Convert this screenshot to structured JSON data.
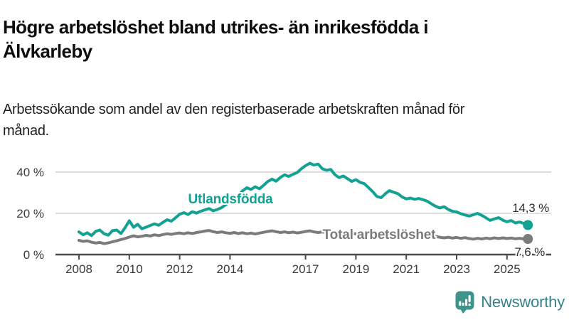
{
  "header": {
    "title": "Högre arbetslöshet bland utrikes- än inrikesfödda i Älvkarleby",
    "subtitle": "Arbetssökande som andel av den registerbaserade arbetskraften månad för månad."
  },
  "chart_data": {
    "type": "line",
    "title": "Högre arbetslöshet bland utrikes- än inrikesfödda i Älvkarleby",
    "subtitle": "Arbetssökande som andel av den registerbaserade arbetskraften månad för månad.",
    "unit": "%",
    "grid": "horizontal-only",
    "legend_position": "inline-labels",
    "x_range": [
      2008,
      2025.83
    ],
    "y_range": [
      0,
      48
    ],
    "x_ticks": [
      2008,
      2010,
      2012,
      2014,
      2017,
      2019,
      2021,
      2023,
      2025
    ],
    "y_ticks": [
      {
        "value": 0,
        "label": "0 %"
      },
      {
        "value": 20,
        "label": "20 %"
      },
      {
        "value": 40,
        "label": "40 %"
      }
    ],
    "series": [
      {
        "name": "Utlandsfödda",
        "color": "#12a192",
        "end_label": "14,3 %",
        "last_value": 14.3,
        "points": [
          [
            2008,
            11
          ],
          [
            2008.17,
            9.6
          ],
          [
            2008.33,
            10.6
          ],
          [
            2008.5,
            9.2
          ],
          [
            2008.67,
            11.3
          ],
          [
            2008.83,
            11.9
          ],
          [
            2009,
            10.1
          ],
          [
            2009.17,
            9.4
          ],
          [
            2009.33,
            11.6
          ],
          [
            2009.5,
            11.9
          ],
          [
            2009.67,
            10.2
          ],
          [
            2009.83,
            13
          ],
          [
            2010,
            16.4
          ],
          [
            2010.17,
            13.2
          ],
          [
            2010.33,
            14.7
          ],
          [
            2010.5,
            12.5
          ],
          [
            2010.67,
            13.3
          ],
          [
            2010.83,
            14.1
          ],
          [
            2011,
            14.9
          ],
          [
            2011.17,
            14.2
          ],
          [
            2011.33,
            15.6
          ],
          [
            2011.5,
            16.9
          ],
          [
            2011.67,
            16.2
          ],
          [
            2011.83,
            17.8
          ],
          [
            2012,
            19.6
          ],
          [
            2012.17,
            20.3
          ],
          [
            2012.33,
            19.4
          ],
          [
            2012.5,
            20.8
          ],
          [
            2012.67,
            20.1
          ],
          [
            2012.83,
            21
          ],
          [
            2013,
            21.7
          ],
          [
            2013.17,
            22.3
          ],
          [
            2013.33,
            21.2
          ],
          [
            2013.5,
            21.9
          ],
          [
            2013.67,
            22.8
          ],
          [
            2013.83,
            24.2
          ],
          [
            2014,
            25.6
          ],
          [
            2014.17,
            27
          ],
          [
            2014.33,
            28.8
          ],
          [
            2014.5,
            30.9
          ],
          [
            2014.67,
            32.4
          ],
          [
            2014.83,
            31.6
          ],
          [
            2015,
            32.9
          ],
          [
            2015.17,
            31.9
          ],
          [
            2015.33,
            33.6
          ],
          [
            2015.5,
            35.4
          ],
          [
            2015.67,
            36.6
          ],
          [
            2015.83,
            35.6
          ],
          [
            2016,
            37.4
          ],
          [
            2016.17,
            38.7
          ],
          [
            2016.33,
            37.9
          ],
          [
            2016.5,
            38.9
          ],
          [
            2016.67,
            39.8
          ],
          [
            2016.83,
            41.6
          ],
          [
            2017,
            43.1
          ],
          [
            2017.17,
            44.3
          ],
          [
            2017.33,
            43.4
          ],
          [
            2017.5,
            43.9
          ],
          [
            2017.67,
            41.6
          ],
          [
            2017.83,
            40.9
          ],
          [
            2018,
            41.3
          ],
          [
            2018.17,
            38.7
          ],
          [
            2018.33,
            37.3
          ],
          [
            2018.5,
            38.1
          ],
          [
            2018.67,
            36.8
          ],
          [
            2018.83,
            35.5
          ],
          [
            2019,
            36.3
          ],
          [
            2019.17,
            35
          ],
          [
            2019.33,
            34.4
          ],
          [
            2019.5,
            32.5
          ],
          [
            2019.67,
            30.5
          ],
          [
            2019.83,
            28.2
          ],
          [
            2020,
            27.6
          ],
          [
            2020.17,
            29.5
          ],
          [
            2020.33,
            31
          ],
          [
            2020.5,
            30.2
          ],
          [
            2020.67,
            29.5
          ],
          [
            2020.83,
            28
          ],
          [
            2021,
            27
          ],
          [
            2021.17,
            27.4
          ],
          [
            2021.33,
            26.8
          ],
          [
            2021.5,
            27.2
          ],
          [
            2021.67,
            26.6
          ],
          [
            2021.83,
            25.9
          ],
          [
            2022,
            24.6
          ],
          [
            2022.17,
            23.4
          ],
          [
            2022.33,
            22.6
          ],
          [
            2022.5,
            23.2
          ],
          [
            2022.67,
            21.9
          ],
          [
            2022.83,
            21
          ],
          [
            2023,
            20.7
          ],
          [
            2023.17,
            19.8
          ],
          [
            2023.33,
            19.2
          ],
          [
            2023.5,
            18.7
          ],
          [
            2023.67,
            19.3
          ],
          [
            2023.83,
            20
          ],
          [
            2024,
            19
          ],
          [
            2024.17,
            17.8
          ],
          [
            2024.33,
            16.6
          ],
          [
            2024.5,
            17.3
          ],
          [
            2024.67,
            17.9
          ],
          [
            2024.83,
            16.7
          ],
          [
            2025,
            15.9
          ],
          [
            2025.17,
            16.5
          ],
          [
            2025.33,
            15.3
          ],
          [
            2025.5,
            15.8
          ],
          [
            2025.67,
            15.1
          ],
          [
            2025.83,
            14.3
          ]
        ]
      },
      {
        "name": "Total arbetslöshet",
        "color": "#7b7b7b",
        "end_label": "7,6 %",
        "last_value": 7.6,
        "points": [
          [
            2008,
            6.9
          ],
          [
            2008.17,
            6.4
          ],
          [
            2008.33,
            6.7
          ],
          [
            2008.5,
            6
          ],
          [
            2008.67,
            5.6
          ],
          [
            2008.83,
            5.9
          ],
          [
            2009,
            5.3
          ],
          [
            2009.17,
            5.7
          ],
          [
            2009.33,
            6.2
          ],
          [
            2009.5,
            6.7
          ],
          [
            2009.67,
            7.3
          ],
          [
            2009.83,
            7.8
          ],
          [
            2010,
            8.5
          ],
          [
            2010.17,
            9.1
          ],
          [
            2010.33,
            8.6
          ],
          [
            2010.5,
            8.9
          ],
          [
            2010.67,
            9.3
          ],
          [
            2010.83,
            9
          ],
          [
            2011,
            9.6
          ],
          [
            2011.17,
            9.2
          ],
          [
            2011.33,
            9.7
          ],
          [
            2011.5,
            10.1
          ],
          [
            2011.67,
            9.8
          ],
          [
            2011.83,
            10.2
          ],
          [
            2012,
            10.5
          ],
          [
            2012.17,
            10.1
          ],
          [
            2012.33,
            10.6
          ],
          [
            2012.5,
            10.2
          ],
          [
            2012.67,
            10.7
          ],
          [
            2012.83,
            11
          ],
          [
            2013,
            11.4
          ],
          [
            2013.17,
            11.7
          ],
          [
            2013.33,
            11.1
          ],
          [
            2013.5,
            10.7
          ],
          [
            2013.67,
            11
          ],
          [
            2013.83,
            10.6
          ],
          [
            2014,
            10.3
          ],
          [
            2014.17,
            10.7
          ],
          [
            2014.33,
            10.2
          ],
          [
            2014.5,
            10.6
          ],
          [
            2014.67,
            10.1
          ],
          [
            2014.83,
            10.4
          ],
          [
            2015,
            10
          ],
          [
            2015.17,
            10.4
          ],
          [
            2015.33,
            10.8
          ],
          [
            2015.5,
            11.2
          ],
          [
            2015.67,
            11.5
          ],
          [
            2015.83,
            11.1
          ],
          [
            2016,
            10.7
          ],
          [
            2016.17,
            11
          ],
          [
            2016.33,
            10.6
          ],
          [
            2016.5,
            10.9
          ],
          [
            2016.67,
            10.5
          ],
          [
            2016.83,
            10.8
          ],
          [
            2017,
            11.2
          ],
          [
            2017.17,
            11.5
          ],
          [
            2017.33,
            11
          ],
          [
            2017.5,
            10.7
          ],
          [
            2017.67,
            11
          ],
          [
            2017.83,
            10.6
          ],
          [
            2018,
            10.9
          ],
          [
            2018.17,
            10.5
          ],
          [
            2018.33,
            10.2
          ],
          [
            2018.5,
            10.5
          ],
          [
            2018.67,
            10.1
          ],
          [
            2018.83,
            10.4
          ],
          [
            2019,
            10
          ],
          [
            2019.17,
            10.3
          ],
          [
            2019.33,
            9.9
          ],
          [
            2019.5,
            9.6
          ],
          [
            2019.67,
            9.9
          ],
          [
            2019.83,
            9.5
          ],
          [
            2020,
            9.2
          ],
          [
            2020.17,
            8.9
          ],
          [
            2020.33,
            9.5
          ],
          [
            2020.5,
            9.1
          ],
          [
            2020.67,
            8.8
          ],
          [
            2020.83,
            9.1
          ],
          [
            2021,
            8.8
          ],
          [
            2021.17,
            9.1
          ],
          [
            2021.33,
            8.7
          ],
          [
            2021.5,
            9
          ],
          [
            2021.67,
            8.6
          ],
          [
            2021.83,
            8.9
          ],
          [
            2022,
            8.5
          ],
          [
            2022.17,
            8.8
          ],
          [
            2022.33,
            8.4
          ],
          [
            2022.5,
            8.1
          ],
          [
            2022.67,
            8.4
          ],
          [
            2022.83,
            8
          ],
          [
            2023,
            8.3
          ],
          [
            2023.17,
            7.9
          ],
          [
            2023.33,
            8.2
          ],
          [
            2023.5,
            7.8
          ],
          [
            2023.67,
            7.5
          ],
          [
            2023.83,
            7.9
          ],
          [
            2024,
            7.6
          ],
          [
            2024.17,
            8
          ],
          [
            2024.33,
            7.7
          ],
          [
            2024.5,
            8.1
          ],
          [
            2024.67,
            7.8
          ],
          [
            2024.83,
            8.1
          ],
          [
            2025,
            7.8
          ],
          [
            2025.17,
            8
          ],
          [
            2025.33,
            7.7
          ],
          [
            2025.5,
            7.9
          ],
          [
            2025.67,
            7.6
          ],
          [
            2025.83,
            7.6
          ]
        ]
      }
    ],
    "axis_color": "#4a4a4a",
    "gridline_color": "#dcdcdc"
  },
  "logo": {
    "text": "Newsworthy",
    "icon": "newsworthy-bar-chart-speech-bubble-icon",
    "icon_color": "#3e948c",
    "text_color": "#35828b"
  }
}
